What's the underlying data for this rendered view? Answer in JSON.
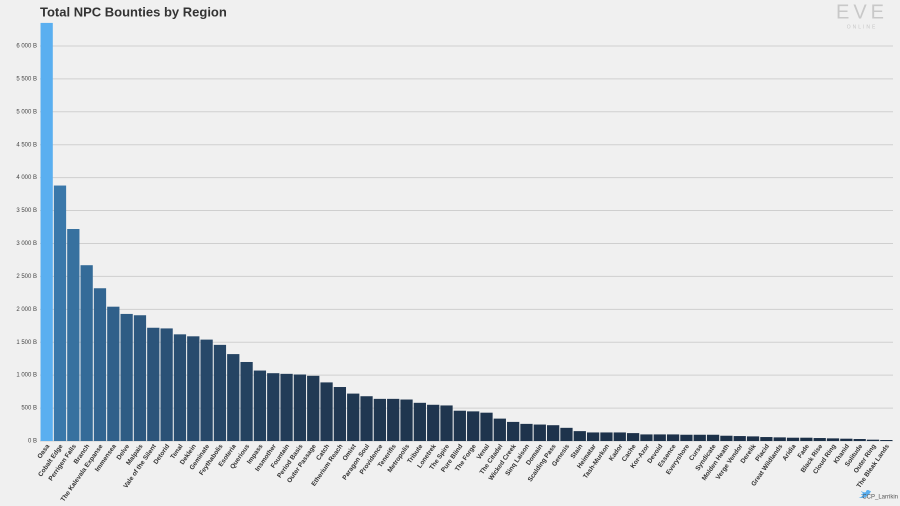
{
  "chart_data": {
    "type": "bar",
    "title": "Total NPC Bounties by Region",
    "logo": "EVE",
    "logo_sub": "ONLINE",
    "credit": "CCP_Larrikin",
    "categories": [
      "Oasa",
      "Cobalt Edge",
      "Perrigen Falls",
      "Branch",
      "The Kalevala Expanse",
      "Immensea",
      "Delve",
      "Malpais",
      "Vale of the Silent",
      "Detorid",
      "Tenal",
      "Deklein",
      "Geminate",
      "Feythabolis",
      "Esoteria",
      "Querious",
      "Impass",
      "Insmother",
      "Fountain",
      "Period Basis",
      "Outer Passage",
      "Catch",
      "Etherium Reach",
      "Omist",
      "Paragon Soul",
      "Providence",
      "Tenerifis",
      "Metropolis",
      "Tribute",
      "Lonetrek",
      "The Spire",
      "Pure Blind",
      "The Forge",
      "Venal",
      "The Citadel",
      "Wicked Creek",
      "Sinq Laison",
      "Domain",
      "Scalding Pass",
      "Genesis",
      "Stain",
      "Heimatar",
      "Tash-Murkon",
      "Kador",
      "Cache",
      "Kor-Azor",
      "Devoid",
      "Essence",
      "Everyshore",
      "Curse",
      "Syndicate",
      "Molden Heath",
      "Verge Vendor",
      "Derelik",
      "Placid",
      "Great Wildlands",
      "Aridia",
      "Fade",
      "Black Rise",
      "Cloud Ring",
      "Khanid",
      "Solitude",
      "Outer Ring",
      "The Bleak Lands"
    ],
    "values": [
      6350,
      3880,
      3220,
      2670,
      2320,
      2040,
      1930,
      1910,
      1720,
      1710,
      1620,
      1590,
      1540,
      1460,
      1320,
      1200,
      1070,
      1030,
      1020,
      1010,
      990,
      890,
      820,
      720,
      680,
      640,
      640,
      630,
      580,
      550,
      540,
      460,
      450,
      430,
      340,
      290,
      260,
      250,
      240,
      200,
      150,
      130,
      130,
      130,
      120,
      100,
      100,
      100,
      95,
      95,
      95,
      80,
      75,
      70,
      60,
      55,
      50,
      50,
      45,
      40,
      35,
      30,
      20,
      15
    ],
    "colors": [
      "#5aaff0",
      "#3a78aa",
      "#37719f",
      "#346b98",
      "#326591",
      "#30608a",
      "#2e5c84",
      "#2d587f",
      "#2b547a",
      "#2a5176",
      "#294e71",
      "#284b6d",
      "#274869",
      "#264666",
      "#254463",
      "#244260",
      "#23405d",
      "#233e5b",
      "#223c58",
      "#223b56",
      "#213a54",
      "#213953",
      "#213852",
      "#203851",
      "#203751",
      "#203750",
      "#203650",
      "#1f364f",
      "#1f364f",
      "#1f354f",
      "#1f354e",
      "#1f354e",
      "#1f344e",
      "#1e344d",
      "#1e344d",
      "#1e344d",
      "#1e334c",
      "#1e334c",
      "#1e334c",
      "#1e334c",
      "#1d334b",
      "#1d324b",
      "#1d324b",
      "#1d324b",
      "#1d324a",
      "#1d324a",
      "#1d314a",
      "#1d314a",
      "#1c314a",
      "#1c3149",
      "#1c3149",
      "#1c3149",
      "#1c3049",
      "#1c3048",
      "#1c3048",
      "#1c3048",
      "#1c3048",
      "#1b3047",
      "#1b3047",
      "#1b2f47",
      "#1b2f47",
      "#1b2f47",
      "#1b2f46",
      "#1b2f46"
    ],
    "ylim": [
      0,
      6370
    ],
    "yticks": [
      {
        "value": 0,
        "label": "0 B"
      },
      {
        "value": 500,
        "label": "500 B"
      },
      {
        "value": 1000,
        "label": "1 000 B"
      },
      {
        "value": 1500,
        "label": "1 500 B"
      },
      {
        "value": 2000,
        "label": "2 000 B"
      },
      {
        "value": 2500,
        "label": "2 500 B"
      },
      {
        "value": 3000,
        "label": "3 000 B"
      },
      {
        "value": 3500,
        "label": "3 500 B"
      },
      {
        "value": 4000,
        "label": "4 000 B"
      },
      {
        "value": 4500,
        "label": "4 500 B"
      },
      {
        "value": 5000,
        "label": "5 000 B"
      },
      {
        "value": 5500,
        "label": "5 500 B"
      },
      {
        "value": 6000,
        "label": "6 000 B"
      }
    ],
    "grid": true
  }
}
